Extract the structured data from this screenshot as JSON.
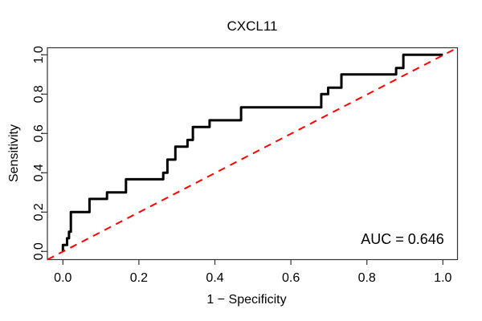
{
  "chart_data": {
    "type": "line",
    "subtype": "roc-curve",
    "title": "CXCL11",
    "xlabel": "1 − Specificity",
    "ylabel": "Sensitivity",
    "xlim": [
      0,
      1
    ],
    "ylim": [
      0,
      1
    ],
    "grid": false,
    "x_ticks": [
      0.0,
      0.2,
      0.4,
      0.6,
      0.8,
      1.0
    ],
    "y_ticks": [
      0.0,
      0.2,
      0.4,
      0.6,
      0.8,
      1.0
    ],
    "x_tick_labels": [
      "0.0",
      "0.2",
      "0.4",
      "0.6",
      "0.8",
      "1.0"
    ],
    "y_tick_labels": [
      "0.0",
      "0.2",
      "0.4",
      "0.6",
      "0.8",
      "1.0"
    ],
    "auc": 0.646,
    "annotations": [
      {
        "text": "AUC = 0.646",
        "x": 0.894,
        "y": 0.062,
        "align": "center"
      }
    ],
    "series": [
      {
        "name": "ROC step curve",
        "type": "step",
        "color": "#000000",
        "line_width": 3,
        "dash": null,
        "points": [
          [
            0.0,
            0.0
          ],
          [
            0.0,
            0.033
          ],
          [
            0.011,
            0.033
          ],
          [
            0.011,
            0.067
          ],
          [
            0.016,
            0.067
          ],
          [
            0.016,
            0.1
          ],
          [
            0.021,
            0.1
          ],
          [
            0.021,
            0.2
          ],
          [
            0.07,
            0.2
          ],
          [
            0.07,
            0.267
          ],
          [
            0.116,
            0.267
          ],
          [
            0.116,
            0.3
          ],
          [
            0.166,
            0.3
          ],
          [
            0.166,
            0.367
          ],
          [
            0.264,
            0.367
          ],
          [
            0.264,
            0.4
          ],
          [
            0.275,
            0.4
          ],
          [
            0.275,
            0.467
          ],
          [
            0.296,
            0.467
          ],
          [
            0.296,
            0.533
          ],
          [
            0.328,
            0.533
          ],
          [
            0.328,
            0.567
          ],
          [
            0.342,
            0.567
          ],
          [
            0.342,
            0.633
          ],
          [
            0.386,
            0.633
          ],
          [
            0.386,
            0.667
          ],
          [
            0.469,
            0.667
          ],
          [
            0.469,
            0.733
          ],
          [
            0.68,
            0.733
          ],
          [
            0.68,
            0.8
          ],
          [
            0.698,
            0.8
          ],
          [
            0.698,
            0.833
          ],
          [
            0.733,
            0.833
          ],
          [
            0.733,
            0.9
          ],
          [
            0.877,
            0.9
          ],
          [
            0.877,
            0.933
          ],
          [
            0.896,
            0.933
          ],
          [
            0.896,
            1.0
          ],
          [
            1.0,
            1.0
          ]
        ]
      },
      {
        "name": "chance diagonal",
        "type": "line",
        "color": "#FF0000",
        "line_width": 2,
        "dash": "dashed",
        "extend_to_box": true,
        "points": [
          [
            0.0,
            0.0
          ],
          [
            1.0,
            1.0
          ]
        ]
      }
    ]
  }
}
